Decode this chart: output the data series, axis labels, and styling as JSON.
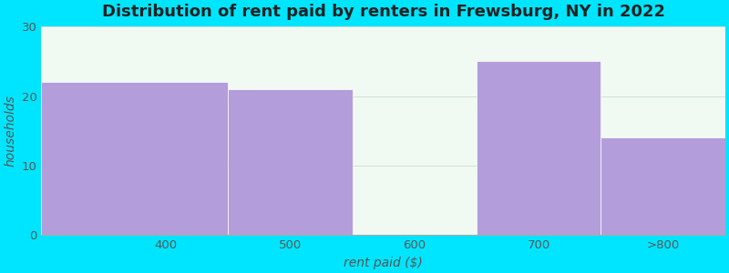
{
  "categories": [
    "400",
    "500",
    "600",
    "700",
    ">800"
  ],
  "bar_lefts": [
    300,
    450,
    550,
    650,
    750
  ],
  "bar_widths": [
    150,
    100,
    100,
    100,
    100
  ],
  "values": [
    22,
    21,
    0,
    25,
    14
  ],
  "bar_colors": [
    "#b39ddb",
    "#b39ddb",
    "#dff0e0",
    "#b39ddb",
    "#b39ddb"
  ],
  "title": "Distribution of rent paid by renters in Frewsburg, NY in 2022",
  "xlabel": "rent paid ($)",
  "ylabel": "households",
  "xlim": [
    300,
    850
  ],
  "ylim": [
    0,
    30
  ],
  "yticks": [
    0,
    10,
    20,
    30
  ],
  "xtick_positions": [
    400,
    500,
    600,
    700,
    800
  ],
  "xtick_labels": [
    "400",
    "500",
    "600",
    "700",
    ">800"
  ],
  "background_color": "#00e5ff",
  "plot_bg_color": "#f0faf2",
  "title_fontsize": 13,
  "label_fontsize": 10,
  "tick_fontsize": 9.5,
  "bar_edge_color": "none"
}
